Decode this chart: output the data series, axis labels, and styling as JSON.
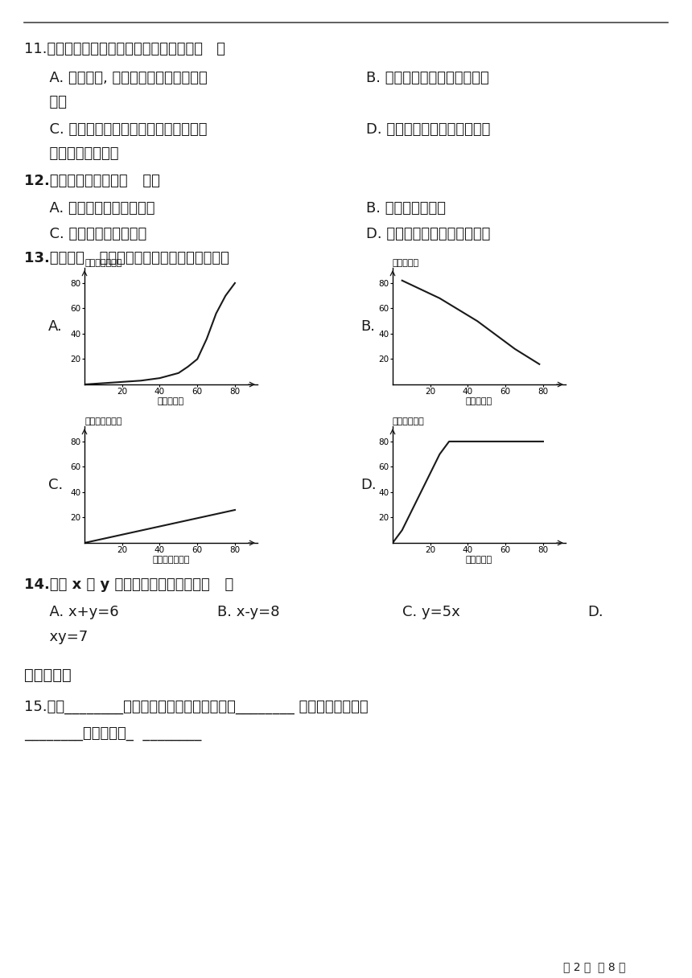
{
  "bg_color": "#ffffff",
  "text_color": "#1a1a1a",
  "top_line_y": 28,
  "q11_text": "11.下面几组相关联的量中，成正比例的是（   ）",
  "q11_A": "  A. 看一本书, 每天看的页数和看的天数",
  "q11_B": "B. 圆锥的体积一定它的底面积",
  "q11_B2": "  和高",
  "q11_C": "  C. 修一条路已经修的米数和未修的米数",
  "q11_D": "D. 同一时间、地点每棵树的高",
  "q11_D2": "  度和它影子的长度",
  "q12_text": "12.下面成正比例的是（   ）。",
  "q12_A": "  A. 路程一定，速度和时间",
  "q12_B": "B. 圆的周长和半径",
  "q12_C": "  C. 正方形的面积和边长",
  "q12_D": "D. 长一定，长方形的周长和宽",
  "q13_text": "13.下面图（   ）表示的是成正比例关系的图像。",
  "q14_text": "14.表示 x 和 y 成正比例关系的式子是（   ）",
  "q14_A": "  A. x+y=6",
  "q14_B": "B. x-y=8",
  "q14_C": "C. y=5x",
  "q14_D": "D.",
  "q14_D2": "  xy=7",
  "q15_section": "四、填空。",
  "q15_text": "15.两种________的量，一种量变化，另一种量________ ，如果这两种量中",
  "q15_text2": "________的两个数的_  ________",
  "footer": "第 2 页  共 8 页",
  "graph_A_title": "温度（摄氏度）",
  "graph_A_xlabel": "时间（分）",
  "graph_B_title": "售出（个）",
  "graph_B_xlabel": "剩下（个）",
  "graph_C_title": "工作总量（个）",
  "graph_C_xlabel": "工作人数（个）",
  "graph_D_title": "路程（千米）",
  "graph_D_xlabel": "时间（时）",
  "xticks": [
    20,
    40,
    60,
    80
  ],
  "yticks": [
    20,
    40,
    60,
    80
  ]
}
